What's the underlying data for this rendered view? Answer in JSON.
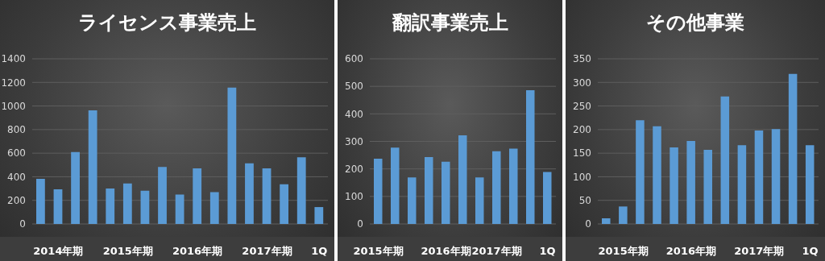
{
  "chart_data": [
    {
      "type": "bar",
      "title": "ライセンス事業売上",
      "categories": [
        null,
        "2014年期",
        null,
        null,
        null,
        "2015年期",
        null,
        null,
        null,
        "2016年期",
        null,
        null,
        null,
        "2017年期",
        null,
        null,
        "1Q"
      ],
      "values": [
        382,
        294,
        610,
        963,
        300,
        344,
        282,
        483,
        250,
        471,
        269,
        1156,
        514,
        471,
        337,
        565,
        143
      ],
      "color": "#5b9bd5",
      "ylim": [
        0,
        1400
      ],
      "yticks": [
        0,
        200,
        400,
        600,
        800,
        1000,
        1200,
        1400
      ],
      "grid": "y"
    },
    {
      "type": "bar",
      "title": "翻訳事業売上",
      "categories": [
        "2015年期",
        null,
        null,
        null,
        "2016年期",
        null,
        null,
        "2017年期",
        null,
        null,
        "1Q"
      ],
      "values": [
        237,
        277,
        169,
        243,
        226,
        322,
        169,
        264,
        274,
        486,
        189
      ],
      "color": "#5b9bd5",
      "ylim": [
        0,
        600
      ],
      "yticks": [
        0,
        100,
        200,
        300,
        400,
        500,
        600
      ],
      "grid": "y"
    },
    {
      "type": "bar",
      "title": "その他事業",
      "categories": [
        null,
        "2015年期",
        null,
        null,
        null,
        "2016年期",
        null,
        null,
        null,
        "2017年期",
        null,
        null,
        "1Q"
      ],
      "values": [
        12,
        37,
        220,
        207,
        162,
        176,
        157,
        270,
        167,
        198,
        201,
        318,
        167
      ],
      "color": "#5b9bd5",
      "ylim": [
        0,
        350
      ],
      "yticks": [
        0,
        50,
        100,
        150,
        200,
        250,
        300,
        350
      ],
      "grid": "y"
    }
  ]
}
